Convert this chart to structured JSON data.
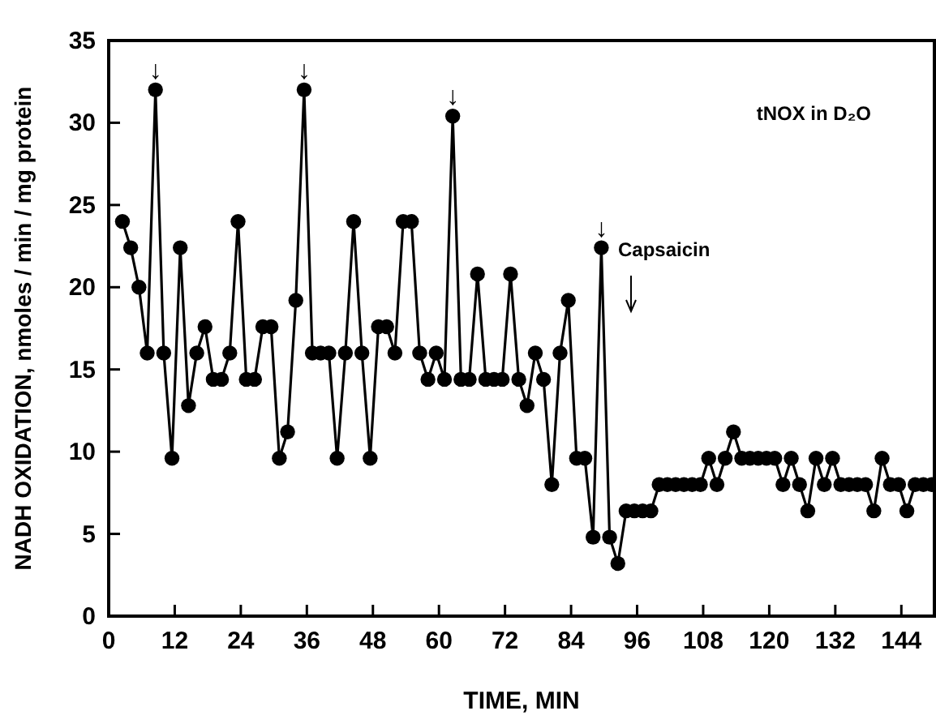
{
  "chart_data": {
    "type": "line",
    "xlabel": "TIME, MIN",
    "ylabel": "NADH OXIDATION, nmoles / min / mg protein",
    "x": [
      2.5,
      4,
      5.5,
      7,
      8.5,
      10,
      11.5,
      13,
      14.5,
      16,
      17.5,
      19,
      20.5,
      22,
      23.5,
      25,
      26.5,
      28,
      29.5,
      31,
      32.5,
      34,
      35.5,
      37,
      38.5,
      40,
      41.5,
      43,
      44.5,
      46,
      47.5,
      49,
      50.5,
      52,
      53.5,
      55,
      56.5,
      58,
      59.5,
      61,
      62.5,
      64,
      65.5,
      67,
      68.5,
      70,
      71.5,
      73,
      74.5,
      76,
      77.5,
      79,
      80.5,
      82,
      83.5,
      85,
      86.5,
      88,
      89.5,
      91,
      92.5,
      94,
      95.5,
      97,
      98.5,
      100,
      101.5,
      103,
      104.5,
      106,
      107.5,
      109,
      110.5,
      112,
      113.5,
      115,
      116.5,
      118,
      119.5,
      121,
      122.5,
      124,
      125.5,
      127,
      128.5,
      130,
      131.5,
      133,
      134.5,
      136,
      137.5,
      139,
      140.5,
      142,
      143.5,
      145,
      146.5,
      148,
      149.5
    ],
    "series": [
      {
        "color": "#000000",
        "values": [
          24,
          22.4,
          20,
          16,
          32,
          16,
          9.6,
          22.4,
          12.8,
          16,
          17.6,
          14.4,
          14.4,
          16,
          24,
          14.4,
          14.4,
          17.6,
          17.6,
          9.6,
          11.2,
          19.2,
          32,
          16,
          16,
          16,
          9.6,
          16,
          24,
          16,
          9.6,
          17.6,
          17.6,
          16,
          24,
          24,
          16,
          14.4,
          16,
          14.4,
          30.4,
          14.4,
          14.4,
          20.8,
          14.4,
          14.4,
          14.4,
          20.8,
          14.4,
          12.8,
          16,
          14.4,
          8,
          16,
          19.2,
          9.6,
          9.6,
          4.8,
          22.4,
          4.8,
          3.2,
          6.4,
          6.4,
          6.4,
          6.4,
          8,
          8,
          8,
          8,
          8,
          8,
          9.6,
          8,
          9.6,
          11.2,
          9.6,
          9.6,
          9.6,
          9.6,
          9.6,
          8,
          9.6,
          8,
          6.4,
          9.6,
          8,
          9.6,
          8,
          8,
          8,
          8,
          6.4,
          9.6,
          8,
          8,
          6.4,
          8,
          8,
          8
        ]
      }
    ],
    "xlim": [
      0,
      150
    ],
    "xticks": [
      0,
      12,
      24,
      36,
      48,
      60,
      72,
      84,
      96,
      108,
      120,
      132,
      144
    ],
    "ylim": [
      0,
      35
    ],
    "yticks": [
      0,
      5,
      10,
      15,
      20,
      25,
      30,
      35
    ],
    "marker": "circle",
    "grid": false,
    "annotations": [
      "tNOX in D₂O",
      "Capsaicin",
      {
        "text": "↓",
        "x": 8.5,
        "y": 32
      },
      {
        "text": "↓",
        "x": 35.5,
        "y": 32
      },
      {
        "text": "↓",
        "x": 62.5,
        "y": 30.4
      },
      {
        "text": "↓",
        "x": 89.5,
        "y": 22.4
      }
    ]
  }
}
